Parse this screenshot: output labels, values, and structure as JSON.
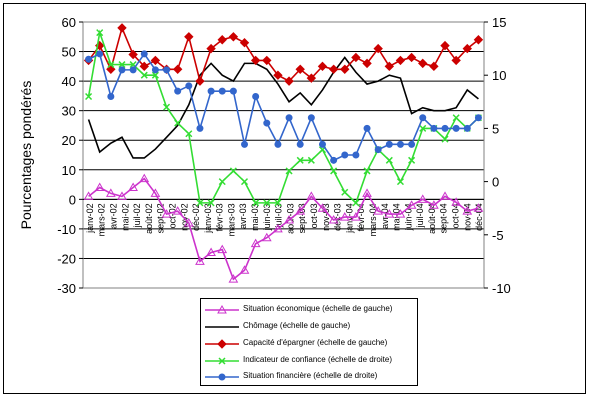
{
  "chart_data": {
    "type": "line",
    "ylabel": "Pourcentages pondérés",
    "left_axis": {
      "min": -30,
      "max": 60,
      "step": 10,
      "ticks": [
        "60",
        "50",
        "40",
        "30",
        "20",
        "10",
        "0",
        "-10",
        "-20",
        "-30"
      ]
    },
    "right_axis": {
      "min": -10,
      "max": 15,
      "step": 5,
      "ticks": [
        "15",
        "10",
        "5",
        "0",
        "-5",
        "-10"
      ]
    },
    "grid": true,
    "legend_position": "bottom",
    "categories": [
      "janv-02",
      "févr-02",
      "mars-02",
      "avr-02",
      "mai-02",
      "juin-02",
      "juil-02",
      "août-02",
      "sept-02",
      "oct-02",
      "nov-02",
      "déc-02",
      "janv-03",
      "févr-03",
      "mars-03",
      "avr-03",
      "mai-03",
      "juin-03",
      "juil-03",
      "août-03",
      "sept-03",
      "oct-03",
      "nov-03",
      "déc-03",
      "janv-04",
      "févr-04",
      "mars-04",
      "avr-04",
      "mai-04",
      "juin-04",
      "juil-04",
      "août-04",
      "sept-04",
      "oct-04",
      "nov-04",
      "déc-04"
    ],
    "xtick_labels": [
      "janv-02",
      "mars-02",
      "avr-02",
      "mai-02",
      "juil-02",
      "août-02",
      "sept-02",
      "oct-02",
      "nov-02",
      "déc-02",
      "janv-03",
      "févr-03",
      "mars-03",
      "avr-03",
      "mai-03",
      "juin-03",
      "juil-03",
      "août-03",
      "sept-03",
      "oct-03",
      "nov-03",
      "déc-03",
      "janv-04",
      "févr-04",
      "mars-04",
      "avr-04",
      "mai-04",
      "juin-04",
      "juil-04",
      "août-04",
      "sept-04",
      "oct-04",
      "nov-04",
      "déc-04"
    ],
    "series": [
      {
        "name": "Situation économique (échelle de gauche)",
        "axis": "left",
        "color": "#cc33cc",
        "marker": "triangle-open",
        "values": [
          1,
          4,
          2,
          1,
          4,
          7,
          2,
          -5,
          -4,
          -8,
          -21,
          -18,
          -17,
          -27,
          -24,
          -15,
          -13,
          -10,
          -7,
          -4,
          1,
          -3,
          -7,
          -6,
          -6,
          2,
          -4,
          -5,
          -5,
          -2,
          0,
          -2,
          1,
          -1,
          -4,
          -3
        ]
      },
      {
        "name": "Chômage (échelle de gauche)",
        "axis": "left",
        "color": "#000000",
        "marker": "none",
        "values": [
          27,
          16,
          19,
          21,
          14,
          14,
          17,
          21,
          25,
          32,
          42,
          46,
          42,
          40,
          46,
          46,
          44,
          39,
          33,
          36,
          32,
          37,
          43,
          48,
          43,
          39,
          40,
          42,
          41,
          29,
          31,
          30,
          30,
          31,
          37,
          34
        ]
      },
      {
        "name": "Capacité d'épargner (échelle de gauche)",
        "axis": "left",
        "color": "#cc0000",
        "marker": "diamond",
        "values": [
          47,
          52,
          44,
          58,
          49,
          45,
          47,
          44,
          44,
          55,
          40,
          51,
          54,
          55,
          53,
          47,
          47,
          42,
          40,
          44,
          41,
          45,
          44,
          44,
          48,
          46,
          51,
          45,
          47,
          48,
          46,
          45,
          52,
          47,
          51,
          54
        ]
      },
      {
        "name": "Indicateur de confiance (échelle de droite)",
        "axis": "right",
        "color": "#33dd33",
        "marker": "x",
        "values": [
          8,
          14,
          11,
          11,
          11,
          10,
          10,
          7,
          5.5,
          4.5,
          -2,
          -2,
          0,
          1,
          0,
          -2,
          -2,
          -2,
          1,
          2,
          2,
          3,
          1,
          -1,
          -2,
          1,
          3,
          2,
          0,
          2,
          5,
          5,
          4,
          6,
          5,
          6
        ]
      },
      {
        "name": "Situation financière (échelle de droite)",
        "axis": "right",
        "color": "#3366cc",
        "marker": "circle",
        "values": [
          11.5,
          12,
          8,
          10.5,
          10.5,
          12,
          10.5,
          10.5,
          8.5,
          9,
          5,
          8.5,
          8.5,
          8.5,
          3.5,
          8,
          5.5,
          3.5,
          6,
          3.5,
          6,
          3.5,
          2,
          2.5,
          2.5,
          5,
          3,
          3.5,
          3.5,
          3.5,
          6,
          5,
          5,
          5,
          5,
          6
        ]
      }
    ]
  }
}
